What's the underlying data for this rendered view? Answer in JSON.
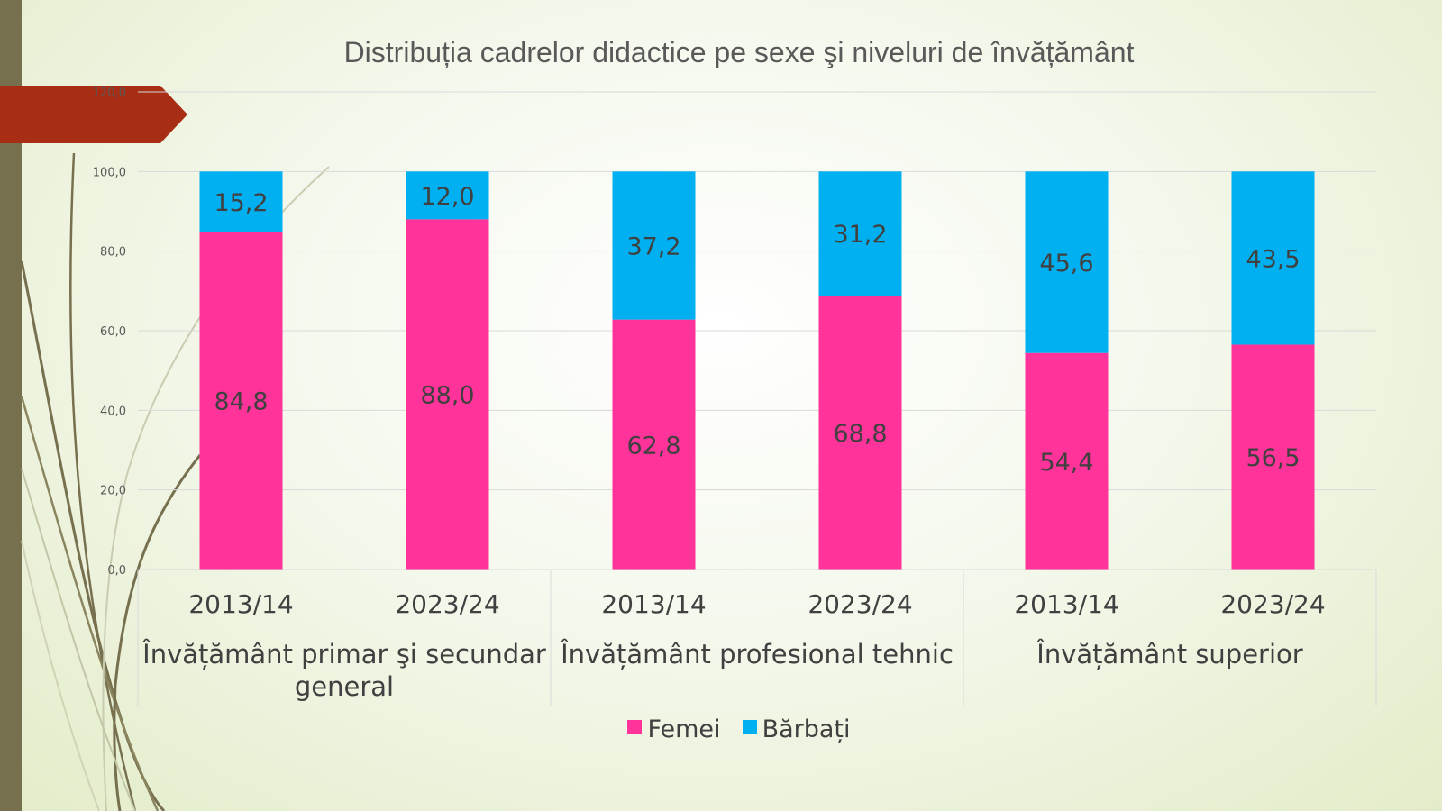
{
  "chart_data": {
    "type": "bar",
    "stacked": true,
    "title": "Distribuția cadrelor didactice pe sexe şi niveluri de învățământ",
    "groups": [
      {
        "label": "Învățământ primar şi secundar general",
        "label_lines": [
          "Învățământ primar şi secundar",
          "general"
        ],
        "categories": [
          "2013/14",
          "2023/24"
        ]
      },
      {
        "label": "Învățământ profesional tehnic",
        "label_lines": [
          "Învățământ profesional tehnic"
        ],
        "categories": [
          "2013/14",
          "2023/24"
        ]
      },
      {
        "label": "Învățământ superior",
        "label_lines": [
          "Învățământ superior"
        ],
        "categories": [
          "2013/14",
          "2023/24"
        ]
      }
    ],
    "categories": [
      "2013/14",
      "2023/24",
      "2013/14",
      "2023/24",
      "2013/14",
      "2023/24"
    ],
    "series": [
      {
        "name": "Femei",
        "color": "#ff3399",
        "values": [
          84.8,
          88.0,
          62.8,
          68.8,
          54.4,
          56.5
        ],
        "labels": [
          "84,8",
          "88,0",
          "62,8",
          "68,8",
          "54,4",
          "56,5"
        ]
      },
      {
        "name": "Bărbați",
        "color": "#00b0f0",
        "values": [
          15.2,
          12.0,
          37.2,
          31.2,
          45.6,
          43.5
        ],
        "labels": [
          "15,2",
          "12,0",
          "37,2",
          "31,2",
          "45,6",
          "43,5"
        ]
      }
    ],
    "ylim": [
      0,
      120
    ],
    "yticks": [
      0,
      20,
      40,
      60,
      80,
      100,
      120
    ],
    "ytick_labels": [
      "0,0",
      "20,0",
      "40,0",
      "60,0",
      "80,0",
      "100,0",
      "120,0"
    ],
    "grid": true,
    "legend": "bottom",
    "xlabel": "",
    "ylabel": ""
  },
  "colors": {
    "accent_band": "#77704f",
    "arrow": "#a82d15",
    "text": "#595959"
  }
}
